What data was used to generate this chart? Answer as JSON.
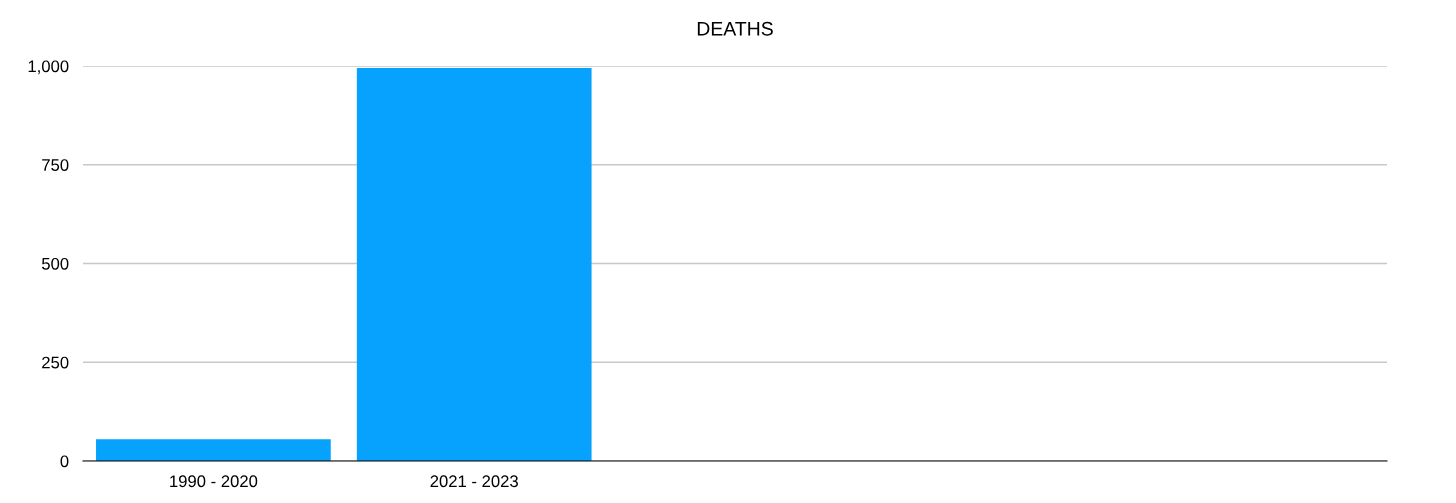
{
  "chart_data": {
    "type": "bar",
    "title": "DEATHS",
    "categories": [
      "1990 - 2020",
      "2021 - 2023",
      null,
      null,
      null
    ],
    "values": [
      55,
      995,
      null,
      null,
      null
    ],
    "color": "#07a1fe",
    "ylim": [
      0,
      1000
    ],
    "yticks": [
      0,
      250,
      500,
      750,
      {
        "value": 1000,
        "label": "1,000"
      }
    ],
    "grid": "y"
  }
}
